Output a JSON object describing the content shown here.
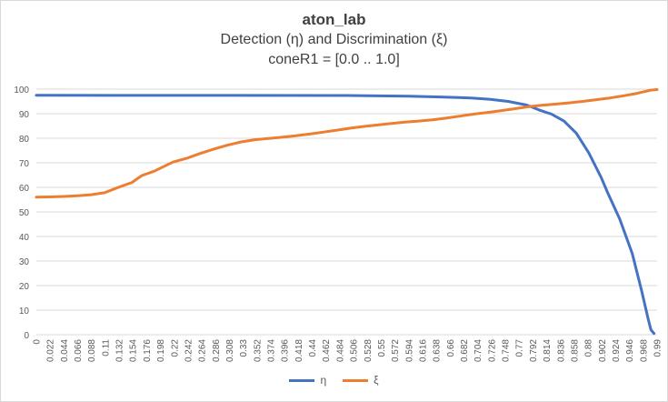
{
  "chart_data": {
    "type": "line",
    "title": "aton_lab",
    "subtitle": "Detection (η) and Discrimination (ξ)",
    "subtitle2": "coneR1 = [0.0 .. 1.0]",
    "xlabel": "",
    "ylabel": "",
    "ylim": [
      0,
      100
    ],
    "yticks": [
      "0",
      "10",
      "20",
      "30",
      "40",
      "50",
      "60",
      "70",
      "80",
      "90",
      "100"
    ],
    "xlim": [
      0,
      1.0
    ],
    "xticks": [
      "0",
      "0.022",
      "0.044",
      "0.066",
      "0.088",
      "0.11",
      "0.132",
      "0.154",
      "0.176",
      "0.198",
      "0.22",
      "0.242",
      "0.264",
      "0.286",
      "0.308",
      "0.33",
      "0.352",
      "0.374",
      "0.396",
      "0.418",
      "0.44",
      "0.462",
      "0.484",
      "0.506",
      "0.528",
      "0.55",
      "0.572",
      "0.594",
      "0.616",
      "0.638",
      "0.66",
      "0.682",
      "0.704",
      "0.726",
      "0.748",
      "0.77",
      "0.792",
      "0.814",
      "0.836",
      "0.858",
      "0.88",
      "0.902",
      "0.924",
      "0.946",
      "0.968",
      "0.99"
    ],
    "grid": true,
    "legend_position": "bottom",
    "series": [
      {
        "name": "η",
        "color": "#4472c4",
        "points": [
          [
            0,
            97.5
          ],
          [
            0.5,
            97.4
          ],
          [
            0.6,
            97.1
          ],
          [
            0.65,
            96.8
          ],
          [
            0.7,
            96.4
          ],
          [
            0.73,
            95.9
          ],
          [
            0.76,
            95.0
          ],
          [
            0.79,
            93.5
          ],
          [
            0.81,
            91.5
          ],
          [
            0.83,
            89.8
          ],
          [
            0.85,
            87.0
          ],
          [
            0.87,
            82.0
          ],
          [
            0.89,
            74.0
          ],
          [
            0.91,
            64.0
          ],
          [
            0.92,
            58.0
          ],
          [
            0.94,
            47.0
          ],
          [
            0.96,
            33.0
          ],
          [
            0.975,
            18.0
          ],
          [
            0.985,
            7.0
          ],
          [
            0.99,
            2.0
          ],
          [
            0.995,
            0.5
          ]
        ]
      },
      {
        "name": "ξ",
        "color": "#ed7d31",
        "points": [
          [
            0,
            56.0
          ],
          [
            0.022,
            56.1
          ],
          [
            0.044,
            56.3
          ],
          [
            0.066,
            56.6
          ],
          [
            0.088,
            57.0
          ],
          [
            0.11,
            57.8
          ],
          [
            0.132,
            60.0
          ],
          [
            0.154,
            62.0
          ],
          [
            0.17,
            64.8
          ],
          [
            0.19,
            66.6
          ],
          [
            0.22,
            70.3
          ],
          [
            0.242,
            71.8
          ],
          [
            0.264,
            73.8
          ],
          [
            0.286,
            75.6
          ],
          [
            0.308,
            77.2
          ],
          [
            0.33,
            78.5
          ],
          [
            0.352,
            79.4
          ],
          [
            0.374,
            79.9
          ],
          [
            0.396,
            80.4
          ],
          [
            0.418,
            81.0
          ],
          [
            0.44,
            81.7
          ],
          [
            0.462,
            82.5
          ],
          [
            0.484,
            83.3
          ],
          [
            0.506,
            84.1
          ],
          [
            0.528,
            84.8
          ],
          [
            0.55,
            85.4
          ],
          [
            0.572,
            86.0
          ],
          [
            0.594,
            86.6
          ],
          [
            0.616,
            87.0
          ],
          [
            0.638,
            87.5
          ],
          [
            0.66,
            88.2
          ],
          [
            0.682,
            89.0
          ],
          [
            0.704,
            89.8
          ],
          [
            0.726,
            90.5
          ],
          [
            0.748,
            91.2
          ],
          [
            0.77,
            92.0
          ],
          [
            0.792,
            92.8
          ],
          [
            0.814,
            93.4
          ],
          [
            0.836,
            93.9
          ],
          [
            0.858,
            94.4
          ],
          [
            0.88,
            95.0
          ],
          [
            0.902,
            95.7
          ],
          [
            0.924,
            96.4
          ],
          [
            0.946,
            97.3
          ],
          [
            0.968,
            98.3
          ],
          [
            0.99,
            99.6
          ],
          [
            1.0,
            99.8
          ]
        ]
      }
    ]
  }
}
